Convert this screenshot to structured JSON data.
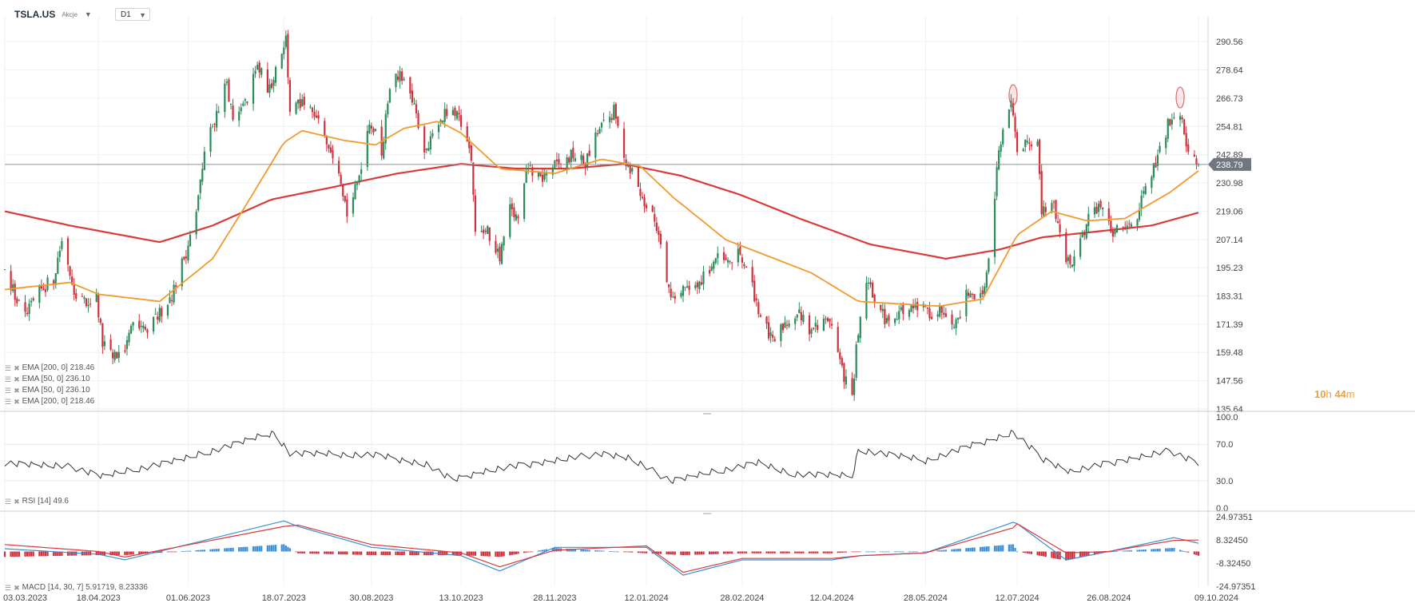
{
  "header": {
    "symbol": "TSLA.US",
    "asset_type": "Akcje",
    "timeframe": "D1"
  },
  "indicators": {
    "price_legend": [
      "EMA [200, 0] 218.46",
      "EMA [50, 0] 236.10",
      "EMA [50, 0] 236.10",
      "EMA [200, 0] 218.46"
    ],
    "rsi_legend": "RSI [14] 49.6",
    "macd_legend": "MACD [14, 30, 7] 5.91719, 8.23336"
  },
  "countdown": {
    "hours": "10",
    "h_unit": "h",
    "minutes": "44",
    "m_unit": "m"
  },
  "colors": {
    "up": "#2a8c5a",
    "down": "#d0303b",
    "ema50": "#f29a2e",
    "ema200": "#d93a3a",
    "macd_line": "#3a8fd6",
    "signal_line": "#d93a3a",
    "hist_pos": "#3a8fd6",
    "hist_neg": "#d0303b"
  },
  "chart_data": [
    {
      "type": "candlestick",
      "title": "TSLA.US",
      "ylim": [
        135.64,
        296.0
      ],
      "y_ticks": [
        "290.56",
        "278.64",
        "266.73",
        "254.81",
        "242.89",
        "230.98",
        "219.06",
        "207.14",
        "195.23",
        "183.31",
        "171.39",
        "159.48",
        "147.56",
        "135.64"
      ],
      "x_ticks": [
        "03.03.2023",
        "18.04.2023",
        "01.06.2023",
        "18.07.2023",
        "30.08.2023",
        "13.10.2023",
        "28.11.2023",
        "12.01.2024",
        "28.02.2024",
        "12.04.2024",
        "28.05.2024",
        "12.07.2024",
        "26.08.2024",
        "09.10.2024"
      ],
      "last_price": "238.79",
      "close_path": [
        [
          "03.03.2023",
          197
        ],
        [
          "08.03.2023",
          183
        ],
        [
          "13.03.2023",
          174
        ],
        [
          "20.03.2023",
          185
        ],
        [
          "27.03.2023",
          191
        ],
        [
          "31.03.2023",
          207
        ],
        [
          "06.04.2023",
          186
        ],
        [
          "12.04.2023",
          180
        ],
        [
          "17.04.2023",
          183
        ],
        [
          "20.04.2023",
          163
        ],
        [
          "25.04.2023",
          157
        ],
        [
          "01.05.2023",
          161
        ],
        [
          "05.05.2023",
          170
        ],
        [
          "12.05.2023",
          168
        ],
        [
          "18.05.2023",
          176
        ],
        [
          "24.05.2023",
          184
        ],
        [
          "31.05.2023",
          202
        ],
        [
          "05.06.2023",
          218
        ],
        [
          "09.06.2023",
          244
        ],
        [
          "14.06.2023",
          258
        ],
        [
          "20.06.2023",
          274
        ],
        [
          "23.06.2023",
          256
        ],
        [
          "29.06.2023",
          264
        ],
        [
          "05.07.2023",
          280
        ],
        [
          "11.07.2023",
          270
        ],
        [
          "14.07.2023",
          280
        ],
        [
          "19.07.2023",
          292
        ],
        [
          "21.07.2023",
          262
        ],
        [
          "26.07.2023",
          264
        ],
        [
          "01.08.2023",
          260
        ],
        [
          "07.08.2023",
          252
        ],
        [
          "14.08.2023",
          238
        ],
        [
          "18.08.2023",
          218
        ],
        [
          "23.08.2023",
          230
        ],
        [
          "29.08.2023",
          258
        ],
        [
          "04.09.2023",
          244
        ],
        [
          "08.09.2023",
          273
        ],
        [
          "14.09.2023",
          276
        ],
        [
          "20.09.2023",
          262
        ],
        [
          "26.09.2023",
          243
        ],
        [
          "02.10.2023",
          258
        ],
        [
          "06.10.2023",
          260
        ],
        [
          "12.10.2023",
          258
        ],
        [
          "18.10.2023",
          243
        ],
        [
          "20.10.2023",
          212
        ],
        [
          "26.10.2023",
          210
        ],
        [
          "01.11.2023",
          200
        ],
        [
          "06.11.2023",
          220
        ],
        [
          "10.11.2023",
          215
        ],
        [
          "15.11.2023",
          238
        ],
        [
          "21.11.2023",
          232
        ],
        [
          "27.11.2023",
          238
        ],
        [
          "01.12.2023",
          238
        ],
        [
          "07.12.2023",
          243
        ],
        [
          "13.12.2023",
          239
        ],
        [
          "19.12.2023",
          252
        ],
        [
          "27.12.2023",
          261
        ],
        [
          "02.01.2024",
          240
        ],
        [
          "05.01.2024",
          236
        ],
        [
          "10.01.2024",
          224
        ],
        [
          "16.01.2024",
          215
        ],
        [
          "19.01.2024",
          207
        ],
        [
          "24.01.2024",
          182
        ],
        [
          "30.01.2024",
          187
        ],
        [
          "05.02.2024",
          185
        ],
        [
          "09.02.2024",
          191
        ],
        [
          "15.02.2024",
          199
        ],
        [
          "21.02.2024",
          197
        ],
        [
          "27.02.2024",
          201
        ],
        [
          "04.03.2024",
          187
        ],
        [
          "08.03.2024",
          175
        ],
        [
          "14.03.2024",
          163
        ],
        [
          "20.03.2024",
          172
        ],
        [
          "26.03.2024",
          176
        ],
        [
          "01.04.2024",
          170
        ],
        [
          "05.04.2024",
          170
        ],
        [
          "11.04.2024",
          174
        ],
        [
          "17.04.2024",
          152
        ],
        [
          "22.04.2024",
          140
        ],
        [
          "24.04.2024",
          160
        ],
        [
          "29.04.2024",
          190
        ],
        [
          "03.05.2024",
          182
        ],
        [
          "09.05.2024",
          172
        ],
        [
          "15.05.2024",
          177
        ],
        [
          "21.05.2024",
          177
        ],
        [
          "27.05.2024",
          178
        ],
        [
          "31.05.2024",
          176
        ],
        [
          "06.06.2024",
          178
        ],
        [
          "12.06.2024",
          172
        ],
        [
          "18.06.2024",
          186
        ],
        [
          "24.06.2024",
          182
        ],
        [
          "28.06.2024",
          197
        ],
        [
          "03.07.2024",
          246
        ],
        [
          "09.07.2024",
          263
        ],
        [
          "12.07.2024",
          244
        ],
        [
          "17.07.2024",
          250
        ],
        [
          "22.07.2024",
          248
        ],
        [
          "24.07.2024",
          218
        ],
        [
          "30.07.2024",
          222
        ],
        [
          "05.08.2024",
          198
        ],
        [
          "09.08.2024",
          200
        ],
        [
          "15.08.2024",
          214
        ],
        [
          "21.08.2024",
          222
        ],
        [
          "27.08.2024",
          210
        ],
        [
          "03.09.2024",
          211
        ],
        [
          "09.09.2024",
          218
        ],
        [
          "13.09.2024",
          228
        ],
        [
          "19.09.2024",
          241
        ],
        [
          "25.09.2024",
          258
        ],
        [
          "30.09.2024",
          262
        ],
        [
          "03.10.2024",
          249
        ],
        [
          "07.10.2024",
          240
        ],
        [
          "09.10.2024",
          238.79
        ]
      ],
      "ema50_path": [
        [
          "03.03.2023",
          186
        ],
        [
          "04.04.2023",
          189
        ],
        [
          "18.04.2023",
          184
        ],
        [
          "18.05.2023",
          181
        ],
        [
          "13.06.2023",
          199
        ],
        [
          "29.06.2023",
          221
        ],
        [
          "18.07.2023",
          248
        ],
        [
          "27.07.2023",
          253
        ],
        [
          "16.08.2023",
          249
        ],
        [
          "01.09.2023",
          247
        ],
        [
          "15.09.2023",
          254
        ],
        [
          "02.10.2023",
          257
        ],
        [
          "13.10.2023",
          252
        ],
        [
          "01.11.2023",
          237
        ],
        [
          "28.11.2023",
          235
        ],
        [
          "21.12.2023",
          241
        ],
        [
          "09.01.2024",
          238
        ],
        [
          "25.01.2024",
          225
        ],
        [
          "20.02.2024",
          207
        ],
        [
          "12.03.2024",
          200
        ],
        [
          "02.04.2024",
          193
        ],
        [
          "25.04.2024",
          181
        ],
        [
          "14.05.2024",
          180
        ],
        [
          "04.06.2024",
          179
        ],
        [
          "25.06.2024",
          182
        ],
        [
          "12.07.2024",
          209
        ],
        [
          "29.07.2024",
          219
        ],
        [
          "15.08.2024",
          215
        ],
        [
          "03.09.2024",
          216
        ],
        [
          "25.09.2024",
          227
        ],
        [
          "09.10.2024",
          236.1
        ]
      ],
      "ema200_path": [
        [
          "03.03.2023",
          219
        ],
        [
          "04.04.2023",
          213
        ],
        [
          "18.05.2023",
          206
        ],
        [
          "13.06.2023",
          213
        ],
        [
          "12.07.2023",
          224
        ],
        [
          "10.08.2023",
          229
        ],
        [
          "12.09.2023",
          235
        ],
        [
          "13.10.2023",
          239
        ],
        [
          "09.11.2023",
          237
        ],
        [
          "05.12.2023",
          237
        ],
        [
          "01.01.2024",
          239
        ],
        [
          "29.01.2024",
          234
        ],
        [
          "27.02.2024",
          226
        ],
        [
          "27.03.2024",
          216
        ],
        [
          "01.05.2024",
          205
        ],
        [
          "07.06.2024",
          199
        ],
        [
          "04.07.2024",
          203
        ],
        [
          "24.07.2024",
          208
        ],
        [
          "26.08.2024",
          211
        ],
        [
          "16.09.2024",
          213
        ],
        [
          "09.10.2024",
          218.46
        ]
      ],
      "annotations": [
        "circle marker near 10.07.2024 high",
        "circle marker near 30.09.2024 high"
      ]
    },
    {
      "type": "line",
      "title": "RSI [14] 49.6",
      "ylim": [
        0,
        100
      ],
      "y_ticks": [
        "100.0",
        "70.0",
        "30.0",
        "0.0"
      ],
      "x": [
        "03.03.2023",
        "05.04.2023",
        "20.04.2023",
        "01.06.2023",
        "13.07.2023",
        "21.07.2023",
        "01.09.2023",
        "26.09.2023",
        "09.10.2023",
        "23.10.2023",
        "21.12.2023",
        "03.01.2024",
        "24.01.2024",
        "07.03.2024",
        "21.03.2024",
        "22.04.2024",
        "25.04.2024",
        "28.05.2024",
        "10.07.2024",
        "24.07.2024",
        "07.08.2024",
        "25.09.2024",
        "09.10.2024"
      ],
      "values": [
        50,
        45,
        35,
        55,
        83,
        60,
        58,
        48,
        30,
        40,
        60,
        55,
        30,
        50,
        38,
        35,
        64,
        52,
        83,
        55,
        40,
        63,
        49.6
      ]
    },
    {
      "type": "line",
      "title": "MACD [14, 30, 7] 5.91719, 8.23336",
      "ylim": [
        -24.97351,
        24.97351
      ],
      "y_ticks": [
        "24.97351",
        "8.32450",
        "-8.32450",
        "-24.97351"
      ],
      "x": [
        "03.03.2023",
        "18.04.2023",
        "01.05.2023",
        "18.07.2023",
        "25.07.2023",
        "30.08.2023",
        "13.10.2023",
        "01.11.2023",
        "28.11.2023",
        "12.01.2024",
        "30.01.2024",
        "28.02.2024",
        "12.04.2024",
        "26.04.2024",
        "28.05.2024",
        "10.07.2024",
        "12.07.2024",
        "05.08.2024",
        "26.08.2024",
        "27.09.2024",
        "09.10.2024"
      ],
      "series": [
        {
          "name": "MACD",
          "values": [
            2,
            -2,
            -6,
            22,
            18,
            3,
            -3,
            -14,
            3,
            3,
            -17,
            -6,
            -6,
            -3,
            -1,
            21,
            20,
            -6,
            0,
            10,
            5.91719
          ]
        },
        {
          "name": "Signal",
          "values": [
            5,
            0,
            -4,
            18,
            19,
            5,
            -1,
            -11,
            1,
            4,
            -15,
            -5,
            -5,
            -3,
            -1,
            17,
            20,
            -1,
            0,
            8,
            8.23336
          ]
        }
      ]
    }
  ]
}
